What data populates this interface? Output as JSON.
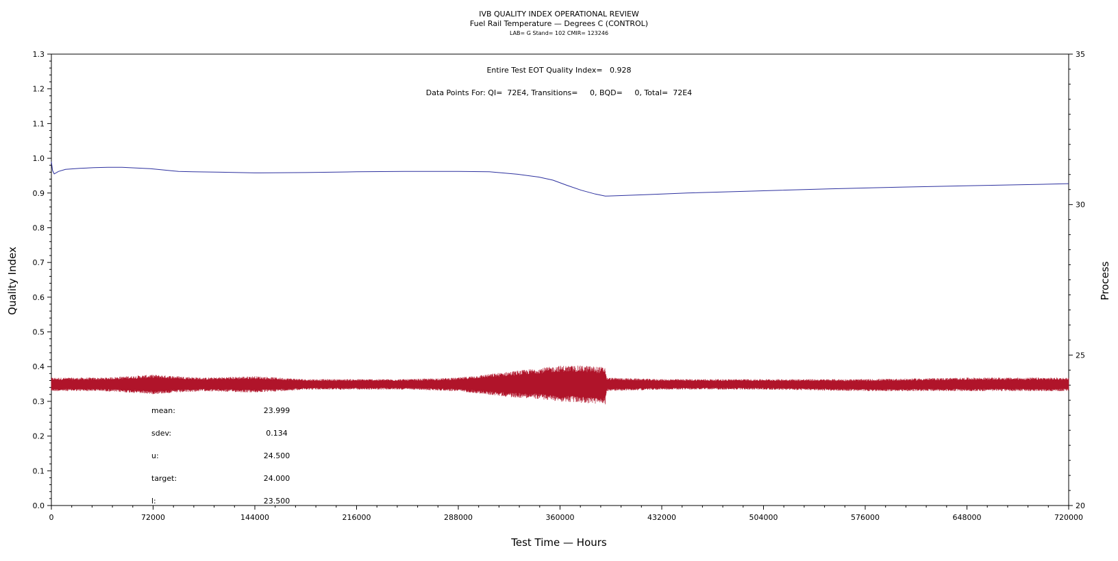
{
  "chart_data": {
    "type": "line",
    "title": "IVB QUALITY INDEX OPERATIONAL REVIEW",
    "subtitle": "Fuel Rail Temperature — Degrees C (CONTROL)",
    "meta": "LAB= G Stand= 102 CMIR= 123246",
    "xlabel": "Test Time — Hours",
    "ylabel_left": "Quality Index",
    "ylabel_right": "Process",
    "xlim": [
      0,
      720000
    ],
    "ylim_left": [
      0,
      1.3
    ],
    "ylim_right": [
      20,
      35
    ],
    "x_ticks": [
      0,
      72000,
      144000,
      216000,
      288000,
      360000,
      432000,
      504000,
      576000,
      648000,
      720000
    ],
    "y_left_ticks": [
      "0.0",
      "0.1",
      "0.2",
      "0.3",
      "0.4",
      "0.5",
      "0.6",
      "0.7",
      "0.8",
      "0.9",
      "1.0",
      "1.1",
      "1.2",
      "1.3"
    ],
    "y_right_ticks": [
      20,
      25,
      30,
      35
    ],
    "grid": false,
    "annotations": {
      "quality_index": "Entire Test EOT Quality Index=   0.928",
      "data_points": "Data Points For: QI=  72E4, Transitions=     0, BQD=     0, Total=  72E4"
    },
    "stats": [
      {
        "label": "mean:",
        "value": "23.999"
      },
      {
        "label": "sdev:",
        "value": "0.134"
      },
      {
        "label": "u:",
        "value": "24.500"
      },
      {
        "label": "target:",
        "value": "24.000"
      },
      {
        "label": "l:",
        "value": "23.500"
      }
    ],
    "series": [
      {
        "axis": "left",
        "color": "#2b2f9e",
        "x": [
          0,
          800,
          2000,
          5000,
          10000,
          20000,
          30000,
          40000,
          50000,
          60000,
          70000,
          80000,
          90000,
          100000,
          120000,
          144000,
          180000,
          216000,
          250000,
          288000,
          310000,
          330000,
          345000,
          355000,
          365000,
          375000,
          385000,
          392000,
          400000,
          420000,
          450000,
          500000,
          550000,
          600000,
          650000,
          700000,
          720000
        ],
        "y": [
          0.99,
          0.965,
          0.955,
          0.962,
          0.968,
          0.971,
          0.973,
          0.974,
          0.974,
          0.972,
          0.97,
          0.966,
          0.962,
          0.961,
          0.96,
          0.958,
          0.959,
          0.961,
          0.962,
          0.962,
          0.961,
          0.954,
          0.946,
          0.937,
          0.922,
          0.908,
          0.897,
          0.891,
          0.892,
          0.895,
          0.9,
          0.906,
          0.912,
          0.917,
          0.921,
          0.925,
          0.927
        ]
      },
      {
        "axis": "right",
        "color": "#b0142a",
        "x": [
          0,
          36000,
          72000,
          108000,
          144000,
          180000,
          216000,
          252000,
          288000,
          306000,
          324000,
          342000,
          360000,
          378000,
          392000,
          393000,
          432000,
          504000,
          576000,
          648000,
          720000
        ],
        "band_low": [
          23.8,
          23.8,
          23.7,
          23.8,
          23.75,
          23.85,
          23.85,
          23.85,
          23.8,
          23.7,
          23.6,
          23.55,
          23.45,
          23.4,
          23.35,
          23.8,
          23.85,
          23.85,
          23.8,
          23.8,
          23.8
        ],
        "band_high": [
          24.25,
          24.25,
          24.35,
          24.25,
          24.3,
          24.2,
          24.2,
          24.2,
          24.25,
          24.35,
          24.45,
          24.55,
          24.65,
          24.65,
          24.6,
          24.25,
          24.2,
          24.2,
          24.2,
          24.25,
          24.25
        ]
      }
    ]
  }
}
